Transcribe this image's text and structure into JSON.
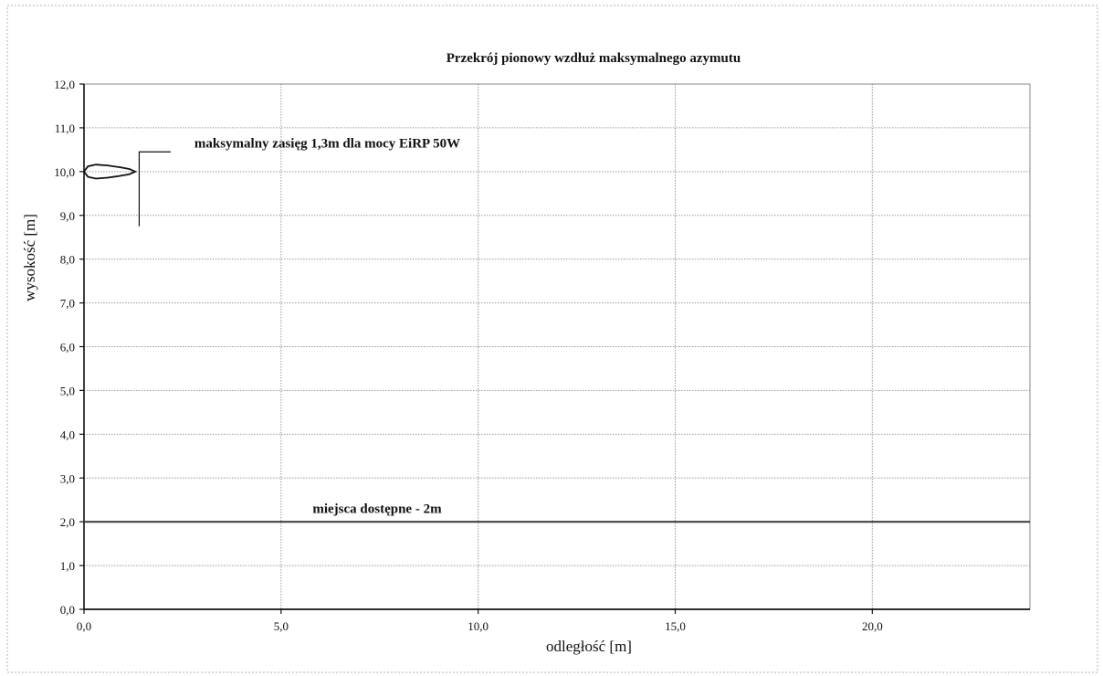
{
  "chart_data": {
    "type": "line",
    "title": "Przekrój pionowy wzdłuż maksymalnego azymutu",
    "xlabel": "odległość [m]",
    "ylabel": "wysokość [m]",
    "xlim": [
      0,
      24
    ],
    "ylim": [
      0,
      12
    ],
    "x_ticks": [
      "0,0",
      "5,0",
      "10,0",
      "15,0",
      "20,0"
    ],
    "x_tick_values": [
      0,
      5,
      10,
      15,
      20
    ],
    "y_ticks": [
      "0,0",
      "1,0",
      "2,0",
      "3,0",
      "4,0",
      "5,0",
      "6,0",
      "7,0",
      "8,0",
      "9,0",
      "10,0",
      "11,0",
      "12,0"
    ],
    "y_tick_values": [
      0,
      1,
      2,
      3,
      4,
      5,
      6,
      7,
      8,
      9,
      10,
      11,
      12
    ],
    "grid": true,
    "series": [
      {
        "name": "miejsca dostępne - 2m",
        "x": [
          0,
          24
        ],
        "y": [
          2,
          2
        ]
      },
      {
        "name": "maksymalny zasięg 1,3m dla mocy EiRP 50W",
        "x": [
          0,
          0.1,
          0.3,
          0.6,
          0.9,
          1.15,
          1.3,
          1.15,
          0.9,
          0.6,
          0.3,
          0.1,
          0
        ],
        "y": [
          10,
          10.12,
          10.16,
          10.14,
          10.1,
          10.06,
          10,
          9.94,
          9.9,
          9.86,
          9.84,
          9.88,
          10
        ]
      }
    ],
    "annotations": [
      {
        "text": "maksymalny zasięg 1,3m dla mocy EiRP 50W",
        "x": 2.8,
        "y": 10.55
      },
      {
        "text": "miejsca dostępne - 2m",
        "x": 5.8,
        "y": 2.2
      }
    ],
    "colors": {
      "axis": "#111111",
      "grid": "#9a9a9a",
      "line": "#444444",
      "lobe": "#111111"
    }
  }
}
